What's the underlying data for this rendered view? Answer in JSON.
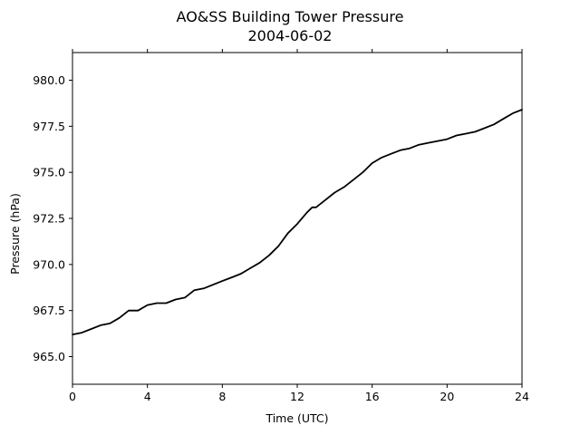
{
  "chart_data": {
    "type": "line",
    "title": "AO&SS Building Tower Pressure",
    "subtitle": "2004-06-02",
    "xlabel": "Time (UTC)",
    "ylabel": "Pressure (hPa)",
    "xlim": [
      0,
      24
    ],
    "ylim": [
      963.5,
      981.5
    ],
    "xticks": [
      0,
      4,
      8,
      12,
      16,
      20,
      24
    ],
    "yticks": [
      965.0,
      967.5,
      970.0,
      972.5,
      975.0,
      977.5,
      980.0
    ],
    "xtick_labels": [
      "0",
      "4",
      "8",
      "12",
      "16",
      "20",
      "24"
    ],
    "ytick_labels": [
      "965.0",
      "967.5",
      "970.0",
      "972.5",
      "975.0",
      "977.5",
      "980.0"
    ],
    "grid": false,
    "series": [
      {
        "color": "#000000",
        "x": [
          0,
          0.5,
          1,
          1.5,
          2,
          2.5,
          3,
          3.5,
          4,
          4.5,
          5,
          5.5,
          6,
          6.5,
          7,
          7.5,
          8,
          8.5,
          9,
          9.5,
          10,
          10.5,
          11,
          11.5,
          12,
          12.5,
          12.8,
          13,
          13.5,
          14,
          14.5,
          15,
          15.5,
          16,
          16.5,
          17,
          17.5,
          18,
          18.5,
          19,
          19.5,
          20,
          20.5,
          21,
          21.5,
          22,
          22.5,
          23,
          23.5,
          24
        ],
        "y": [
          966.2,
          966.3,
          966.5,
          966.7,
          966.8,
          967.1,
          967.5,
          967.5,
          967.8,
          967.9,
          967.9,
          968.1,
          968.2,
          968.6,
          968.7,
          968.9,
          969.1,
          969.3,
          969.5,
          969.8,
          970.1,
          970.5,
          971.0,
          971.7,
          972.2,
          972.8,
          973.1,
          973.1,
          973.5,
          973.9,
          974.2,
          974.6,
          975.0,
          975.5,
          975.8,
          976.0,
          976.2,
          976.3,
          976.5,
          976.6,
          976.7,
          976.8,
          977.0,
          977.1,
          977.2,
          977.4,
          977.6,
          977.9,
          978.2,
          978.4
        ]
      }
    ]
  }
}
